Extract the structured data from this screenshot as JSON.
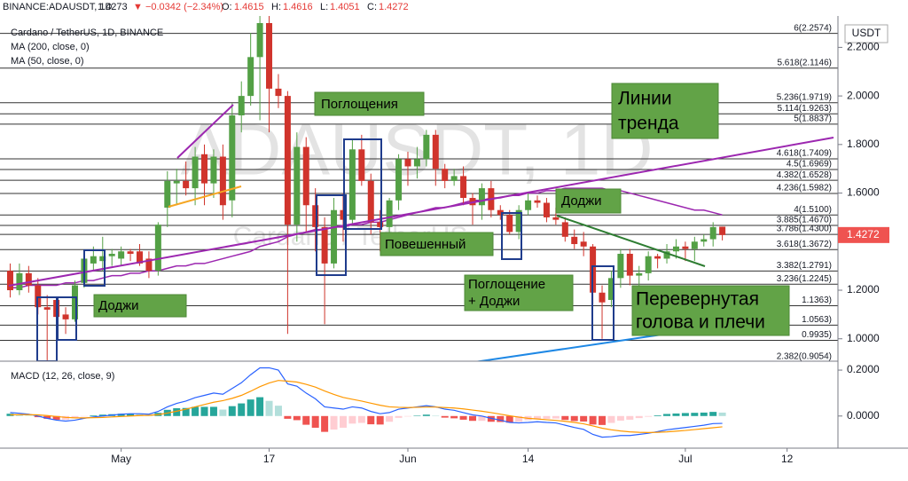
{
  "header": {
    "symbol": "BINANCE:ADAUSDT, 1D",
    "last": "1.4273",
    "change": "▼ −0.0342 (−2.34%)",
    "o_label": "O:",
    "o": "1.4615",
    "h_label": "H:",
    "h": "1.4616",
    "l_label": "L:",
    "l": "1.4051",
    "c_label": "C:",
    "c": "1.4272"
  },
  "annotations": [
    [
      "Поглощения"
    ],
    [
      "Линии",
      "тренда"
    ],
    [
      "Доджи"
    ],
    [
      "Повешенный"
    ],
    [
      "Доджи"
    ],
    [
      "Поглощение",
      "+ Доджи"
    ],
    [
      "Перевернутая",
      "голова и плечи"
    ]
  ],
  "chart_data": [
    {
      "type": "candlestick",
      "subtitle": "Cardano / TetherUS, 1D, BINANCE",
      "axis_label": "USDT",
      "watermark": [
        "ADAUSDT, 1D",
        "Cardano / TetherUS"
      ],
      "up_color": "#53a045",
      "down_color": "#d0342c",
      "x": [
        109,
        110,
        111,
        112,
        113,
        114,
        115,
        116,
        117,
        118,
        119,
        120,
        121,
        122,
        123,
        124,
        125,
        126,
        127,
        128,
        129,
        130,
        131,
        132,
        133,
        134,
        135,
        136,
        137,
        138,
        139,
        140,
        141,
        142,
        143,
        144,
        145,
        146,
        147,
        148,
        149,
        150,
        151,
        152,
        153,
        154,
        155,
        156,
        157,
        158,
        159,
        160,
        161,
        162,
        163,
        164,
        165,
        166,
        167,
        168,
        169,
        170,
        171,
        172,
        173,
        174,
        175,
        176,
        177,
        178,
        179,
        180,
        181,
        182,
        183,
        184,
        185,
        186
      ],
      "xlim": [
        107.9,
        198.5
      ],
      "xticks": [
        {
          "value": 121,
          "label": "May"
        },
        {
          "value": 137,
          "label": "17"
        },
        {
          "value": 152,
          "label": "Jun"
        },
        {
          "value": 165,
          "label": "14"
        },
        {
          "value": 182,
          "label": "Jul"
        },
        {
          "value": 193,
          "label": "12"
        }
      ],
      "ylim": [
        0.9077,
        2.3293
      ],
      "yticks": [
        {
          "value": 2.2,
          "label": "2.2000"
        },
        {
          "value": 2.0,
          "label": "2.0000"
        },
        {
          "value": 1.8,
          "label": "1.8000"
        },
        {
          "value": 1.6,
          "label": "1.6000"
        },
        {
          "value": 1.2,
          "label": "1.2000"
        },
        {
          "value": 1.0,
          "label": "1.0000"
        }
      ],
      "open": [
        1.28,
        1.2,
        1.27,
        1.22,
        1.13,
        1.16,
        1.1,
        1.08,
        1.23,
        1.31,
        1.32,
        1.34,
        1.33,
        1.36,
        1.36,
        1.33,
        1.28,
        1.54,
        1.64,
        1.65,
        1.62,
        1.76,
        1.64,
        1.75,
        1.57,
        1.92,
        2.0,
        2.16,
        2.3,
        2.03,
        2.0,
        1.47,
        1.79,
        1.55,
        1.46,
        1.31,
        1.53,
        1.49,
        1.78,
        1.65,
        1.48,
        1.46,
        1.57,
        1.74,
        1.71,
        1.74,
        1.84,
        1.7,
        1.65,
        1.67,
        1.58,
        1.55,
        1.62,
        1.53,
        1.51,
        1.44,
        1.53,
        1.57,
        1.56,
        1.5,
        1.48,
        1.42,
        1.4,
        1.38,
        1.19,
        1.16,
        1.25,
        1.35,
        1.26,
        1.27,
        1.34,
        1.33,
        1.36,
        1.38,
        1.37,
        1.4,
        1.41,
        1.4615
      ],
      "high": [
        1.31,
        1.31,
        1.3,
        1.25,
        1.18,
        1.17,
        1.13,
        1.24,
        1.36,
        1.38,
        1.42,
        1.37,
        1.38,
        1.37,
        1.39,
        1.36,
        1.48,
        1.69,
        1.7,
        1.73,
        1.79,
        1.8,
        1.78,
        1.8,
        1.97,
        2.06,
        2.26,
        2.33,
        2.33,
        2.09,
        2.02,
        1.85,
        1.83,
        1.62,
        1.5,
        1.58,
        1.6,
        1.82,
        1.84,
        1.68,
        1.53,
        1.58,
        1.76,
        1.77,
        1.79,
        1.86,
        1.86,
        1.72,
        1.7,
        1.71,
        1.6,
        1.64,
        1.65,
        1.55,
        1.53,
        1.55,
        1.6,
        1.59,
        1.58,
        1.54,
        1.5,
        1.45,
        1.44,
        1.39,
        1.22,
        1.28,
        1.37,
        1.37,
        1.3,
        1.36,
        1.35,
        1.39,
        1.41,
        1.4,
        1.42,
        1.43,
        1.48,
        1.4616
      ],
      "low": [
        1.17,
        1.18,
        1.19,
        1.1,
        0.91,
        1.06,
        1.02,
        1.07,
        1.21,
        1.28,
        1.28,
        1.3,
        1.3,
        1.32,
        1.3,
        1.25,
        1.26,
        1.46,
        1.55,
        1.59,
        1.55,
        1.55,
        1.58,
        1.49,
        1.5,
        1.85,
        1.96,
        1.9,
        1.85,
        1.95,
        1.02,
        1.4,
        1.44,
        1.36,
        1.06,
        1.29,
        1.4,
        1.47,
        1.63,
        1.43,
        1.36,
        1.42,
        1.53,
        1.63,
        1.66,
        1.71,
        1.63,
        1.62,
        1.63,
        1.55,
        1.47,
        1.49,
        1.5,
        1.49,
        1.43,
        1.41,
        1.51,
        1.54,
        1.48,
        1.47,
        1.4,
        1.37,
        1.34,
        1.14,
        1.0,
        1.13,
        1.21,
        1.22,
        1.2,
        1.24,
        1.29,
        1.31,
        1.33,
        1.32,
        1.32,
        1.38,
        1.38,
        1.4051
      ],
      "close": [
        1.2,
        1.27,
        1.22,
        1.13,
        1.12,
        1.09,
        1.08,
        1.22,
        1.33,
        1.34,
        1.34,
        1.35,
        1.36,
        1.35,
        1.31,
        1.28,
        1.47,
        1.65,
        1.65,
        1.62,
        1.75,
        1.64,
        1.75,
        1.55,
        1.92,
        2.0,
        2.16,
        2.3,
        2.03,
        2.0,
        1.47,
        1.79,
        1.55,
        1.46,
        1.31,
        1.53,
        1.49,
        1.78,
        1.65,
        1.48,
        1.46,
        1.57,
        1.74,
        1.71,
        1.74,
        1.84,
        1.7,
        1.65,
        1.67,
        1.58,
        1.55,
        1.62,
        1.53,
        1.51,
        1.44,
        1.53,
        1.57,
        1.56,
        1.5,
        1.49,
        1.42,
        1.39,
        1.38,
        1.19,
        1.15,
        1.25,
        1.35,
        1.26,
        1.27,
        1.34,
        1.33,
        1.36,
        1.38,
        1.37,
        1.4,
        1.41,
        1.46,
        1.4272
      ],
      "series": [
        {
          "name": "MA (200, close, 0)"
        },
        {
          "name": "MA (50, close, 0)",
          "color": "#9c27b0",
          "values": [
            1.21,
            1.21,
            1.22,
            1.22,
            1.22,
            1.22,
            1.23,
            1.23,
            1.24,
            1.24,
            1.25,
            1.26,
            1.26,
            1.27,
            1.27,
            1.28,
            1.28,
            1.29,
            1.3,
            1.3,
            1.31,
            1.31,
            1.32,
            1.33,
            1.34,
            1.35,
            1.36,
            1.38,
            1.39,
            1.4,
            1.42,
            1.43,
            1.44,
            1.45,
            1.45,
            1.46,
            1.46,
            1.47,
            1.47,
            1.48,
            1.48,
            1.49,
            1.5,
            1.51,
            1.52,
            1.53,
            1.54,
            1.54,
            1.55,
            1.56,
            1.57,
            1.57,
            1.58,
            1.58,
            1.59,
            1.59,
            1.6,
            1.6,
            1.61,
            1.61,
            1.62,
            1.62,
            1.62,
            1.62,
            1.62,
            1.61,
            1.61,
            1.6,
            1.59,
            1.58,
            1.57,
            1.56,
            1.55,
            1.54,
            1.53,
            1.53,
            1.52,
            1.51
          ]
        }
      ],
      "last_price": 1.4272,
      "last_price_color": "#ef5350",
      "fib_levels": [
        {
          "value": 2.2574,
          "label": "6(2.2574)"
        },
        {
          "value": 2.1146,
          "label": "5.618(2.1146)"
        },
        {
          "value": 1.9719,
          "label": "5.236(1.9719)"
        },
        {
          "value": 1.9263,
          "label": "5.114(1.9263)"
        },
        {
          "value": 1.8837,
          "label": "5(1.8837)"
        },
        {
          "value": 1.7409,
          "label": "4.618(1.7409)"
        },
        {
          "value": 1.6969,
          "label": "4.5(1.6969)"
        },
        {
          "value": 1.6528,
          "label": "4.382(1.6528)"
        },
        {
          "value": 1.5982,
          "label": "4.236(1.5982)"
        },
        {
          "value": 1.51,
          "label": "4(1.5100)"
        },
        {
          "value": 1.467,
          "label": "3.885(1.4670)"
        },
        {
          "value": 1.43,
          "label": "3.786(1.4300)"
        },
        {
          "value": 1.3672,
          "label": "3.618(1.3672)"
        },
        {
          "value": 1.2791,
          "label": "3.382(1.2791)"
        },
        {
          "value": 1.2245,
          "label": "3.236(1.2245)"
        },
        {
          "value": 1.1363,
          "label": "1.1363)"
        },
        {
          "value": 1.0563,
          "label": "1.0563)"
        },
        {
          "value": 0.9935,
          "label": "0.9935)"
        },
        {
          "value": 0.9054,
          "label": "2.382(0.9054)"
        }
      ]
    },
    {
      "type": "macd",
      "title": "MACD (12, 26, close, 9)",
      "ylim": [
        -0.14,
        0.235
      ],
      "yticks": [
        {
          "value": 0.2,
          "label": "0.2000"
        },
        {
          "value": 0,
          "label": "0.0000"
        }
      ],
      "histogram": [
        0.01,
        0.006,
        0.002,
        -0.005,
        -0.012,
        -0.016,
        -0.016,
        -0.01,
        -0.002,
        0.003,
        0.006,
        0.008,
        0.01,
        0.01,
        0.008,
        0.005,
        0.014,
        0.027,
        0.034,
        0.035,
        0.04,
        0.04,
        0.04,
        0.028,
        0.043,
        0.055,
        0.072,
        0.082,
        0.066,
        0.045,
        -0.012,
        -0.018,
        -0.038,
        -0.051,
        -0.069,
        -0.059,
        -0.051,
        -0.033,
        -0.03,
        -0.036,
        -0.037,
        -0.025,
        -0.008,
        -0.002,
        0.002,
        0.006,
        0.001,
        -0.007,
        -0.01,
        -0.016,
        -0.021,
        -0.021,
        -0.025,
        -0.026,
        -0.029,
        -0.025,
        -0.018,
        -0.012,
        -0.012,
        -0.011,
        -0.017,
        -0.022,
        -0.024,
        -0.037,
        -0.039,
        -0.03,
        -0.02,
        -0.016,
        -0.009,
        -0.003,
        0.003,
        0.009,
        0.011,
        0.013,
        0.014,
        0.015,
        0.018,
        0.015
      ],
      "histogram_colors": [
        "#26a69a",
        "#b2dfdb",
        "#ef5350",
        "#ffcdd2"
      ],
      "series": [
        {
          "name": "MACD",
          "color": "#2962ff",
          "values": [
            0.015,
            0.012,
            0.008,
            0.0,
            -0.01,
            -0.018,
            -0.022,
            -0.018,
            -0.01,
            -0.004,
            0.0,
            0.004,
            0.008,
            0.01,
            0.01,
            0.008,
            0.02,
            0.04,
            0.055,
            0.065,
            0.08,
            0.09,
            0.1,
            0.095,
            0.12,
            0.145,
            0.18,
            0.21,
            0.21,
            0.2,
            0.14,
            0.13,
            0.1,
            0.075,
            0.04,
            0.035,
            0.03,
            0.04,
            0.035,
            0.02,
            0.01,
            0.015,
            0.03,
            0.035,
            0.04,
            0.045,
            0.04,
            0.03,
            0.025,
            0.015,
            0.005,
            0.0,
            -0.01,
            -0.018,
            -0.028,
            -0.03,
            -0.028,
            -0.025,
            -0.028,
            -0.03,
            -0.04,
            -0.05,
            -0.058,
            -0.08,
            -0.092,
            -0.09,
            -0.085,
            -0.085,
            -0.08,
            -0.075,
            -0.068,
            -0.06,
            -0.055,
            -0.05,
            -0.045,
            -0.04,
            -0.033,
            -0.032
          ]
        },
        {
          "name": "Signal",
          "color": "#ff9800",
          "values": [
            0.005,
            0.006,
            0.006,
            0.005,
            0.002,
            -0.002,
            -0.006,
            -0.008,
            -0.008,
            -0.007,
            -0.006,
            -0.004,
            -0.002,
            0.0,
            0.002,
            0.003,
            0.006,
            0.013,
            0.021,
            0.03,
            0.04,
            0.05,
            0.06,
            0.067,
            0.077,
            0.09,
            0.108,
            0.128,
            0.144,
            0.155,
            0.152,
            0.148,
            0.138,
            0.126,
            0.109,
            0.094,
            0.081,
            0.073,
            0.065,
            0.056,
            0.047,
            0.04,
            0.038,
            0.037,
            0.038,
            0.039,
            0.039,
            0.037,
            0.035,
            0.031,
            0.026,
            0.021,
            0.015,
            0.008,
            0.001,
            -0.005,
            -0.01,
            -0.013,
            -0.016,
            -0.019,
            -0.023,
            -0.028,
            -0.034,
            -0.043,
            -0.053,
            -0.06,
            -0.065,
            -0.069,
            -0.071,
            -0.072,
            -0.071,
            -0.069,
            -0.066,
            -0.063,
            -0.059,
            -0.055,
            -0.051,
            -0.047
          ]
        }
      ]
    }
  ]
}
